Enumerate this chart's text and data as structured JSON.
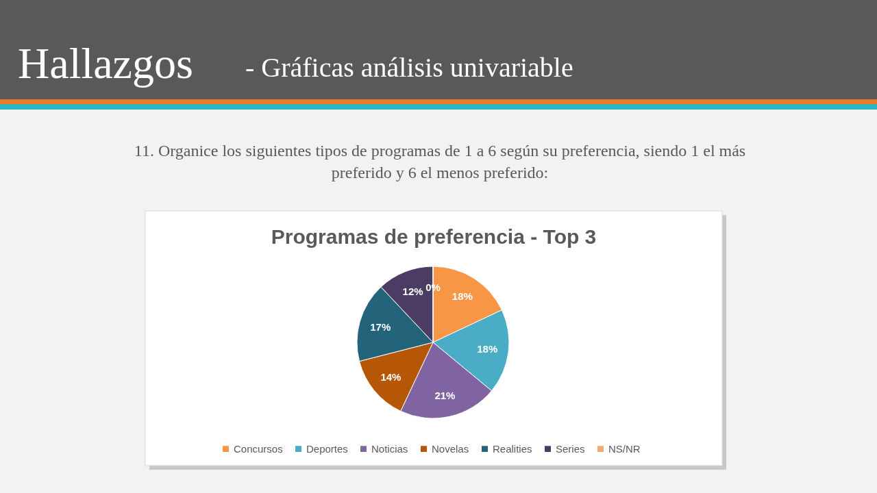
{
  "chart_data": {
    "type": "pie",
    "title": "Programas de preferencia - Top 3",
    "subtitle": "11. Organice los siguientes tipos de programas de 1 a 6 según su preferencia, siendo 1 el más\npreferido y 6 el menos preferido:",
    "annotations": [
      "Hallazgos",
      "-  Gráficas análisis univariable"
    ],
    "categories": [
      "Concursos",
      "Deportes",
      "Noticias",
      "Novelas",
      "Realities",
      "Series",
      "NS/NR"
    ],
    "values": [
      18,
      18,
      21,
      14,
      17,
      12,
      0
    ],
    "value_labels": [
      "18%",
      "18%",
      "21%",
      "14%",
      "17%",
      "12%",
      "0%"
    ],
    "colors": [
      "#f79646",
      "#4bacc6",
      "#8064a2",
      "#b65708",
      "#23647a",
      "#4b3c63",
      "#f9a76c"
    ],
    "legend": "bottom"
  }
}
